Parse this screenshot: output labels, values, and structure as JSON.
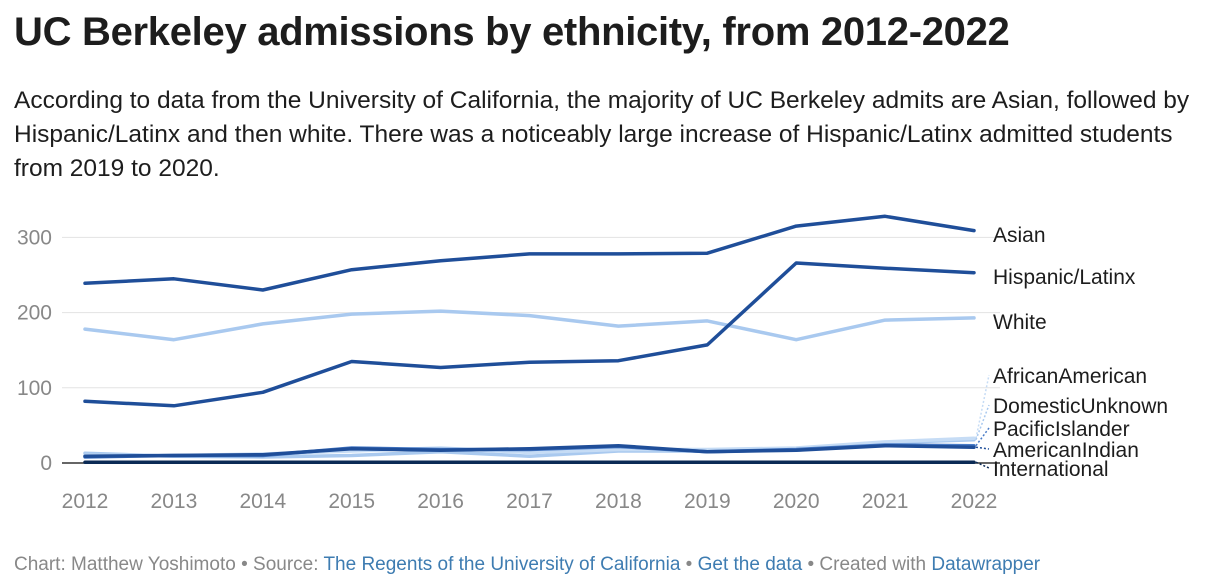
{
  "header": {
    "title": "UC Berkeley admissions by ethnicity, from 2012-2022",
    "subtitle": "According to data from the University of California, the majority of UC Berkeley admits are Asian, followed by Hispanic/Latinx and then white. There was a noticeably large increase of Hispanic/Latinx admitted students from 2019 to 2020."
  },
  "footer": {
    "chart_prefix": "Chart: Matthew Yoshimoto",
    "bullet": "•",
    "source_prefix": "Source:",
    "source_link": "The Regents of the University of California",
    "data_link": "Get the data",
    "created_prefix": "Created with",
    "created_link": "Datawrapper"
  },
  "colors": {
    "dark_blue": "#1f4e99",
    "light_blue": "#a9c9ef",
    "navy": "#0b2a55",
    "grid": "#e3e3e3",
    "axis": "#333333",
    "tick_text": "#888888",
    "link": "#3e7cb1"
  },
  "chart_data": {
    "type": "line",
    "x": [
      2012,
      2013,
      2014,
      2015,
      2016,
      2017,
      2018,
      2019,
      2020,
      2021,
      2022
    ],
    "ylim": [
      0,
      330
    ],
    "yticks": [
      0,
      100,
      200,
      300
    ],
    "grid": true,
    "legend": "direct labels at right end of lines",
    "series": [
      {
        "name": "Asian",
        "color": "#1f4e99",
        "values": [
          239,
          245,
          230,
          257,
          269,
          278,
          278,
          279,
          315,
          328,
          309
        ]
      },
      {
        "name": "Hispanic/Latinx",
        "color": "#1f4e99",
        "values": [
          82,
          76,
          94,
          135,
          127,
          134,
          136,
          157,
          266,
          259,
          253
        ]
      },
      {
        "name": "White",
        "color": "#a9c9ef",
        "values": [
          178,
          164,
          185,
          198,
          202,
          196,
          182,
          189,
          164,
          190,
          193
        ]
      },
      {
        "name": "AfricanAmerican",
        "color": "#c6dcf5",
        "values": [
          10,
          10,
          12,
          16,
          20,
          14,
          18,
          18,
          20,
          28,
          33
        ]
      },
      {
        "name": "DomesticUnknown",
        "color": "#a9c9ef",
        "values": [
          13,
          9,
          8,
          10,
          15,
          9,
          16,
          16,
          17,
          27,
          31
        ]
      },
      {
        "name": "PacificIslander",
        "color": "#4a7cc7",
        "values": [
          8,
          10,
          10,
          20,
          18,
          18,
          22,
          15,
          18,
          24,
          23
        ]
      },
      {
        "name": "AmericanIndian",
        "color": "#1f4e99",
        "values": [
          9,
          10,
          11,
          19,
          17,
          19,
          23,
          15,
          17,
          23,
          21
        ]
      },
      {
        "name": "International",
        "color": "#0b2a55",
        "values": [
          1,
          1,
          1,
          1,
          1,
          1,
          1,
          1,
          1,
          1,
          1
        ]
      }
    ]
  }
}
